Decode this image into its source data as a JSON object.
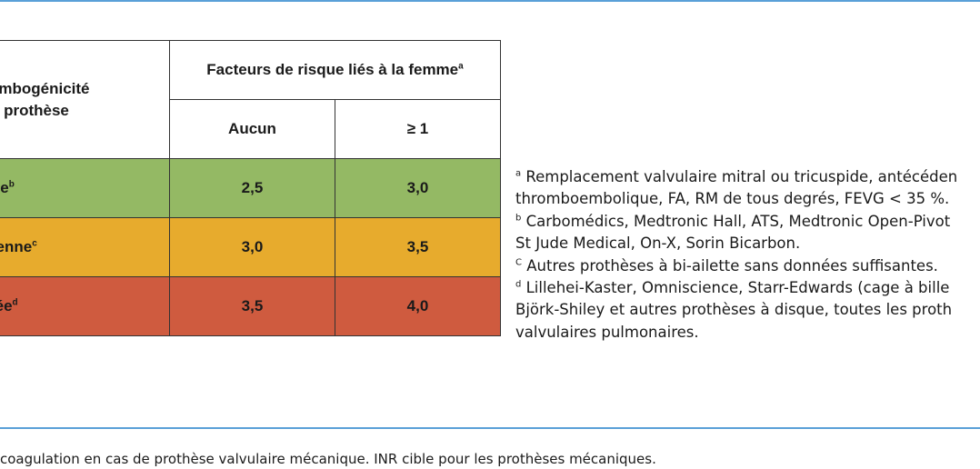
{
  "table": {
    "col_header_1_line1": "hrombogénicité",
    "col_header_1_line2": "e la prothèse",
    "group_header": "Facteurs de risque liés à la femme",
    "group_header_sup": "a",
    "sub_header_1": "Aucun",
    "sub_header_2": "≥ 1",
    "rows": [
      {
        "label": "aible",
        "sup": "b",
        "v1": "2,5",
        "v2": "3,0",
        "color": "#94b964"
      },
      {
        "label": "loyenne",
        "sup": "c",
        "v1": "3,0",
        "v2": "3,5",
        "color": "#e7ab2d"
      },
      {
        "label": "levée",
        "sup": "d",
        "v1": "3,5",
        "v2": "4,0",
        "color": "#cf5b3f"
      }
    ]
  },
  "notes": [
    {
      "sup": "a",
      "line1": " Remplacement valvulaire mitral ou tricuspide, antécéden",
      "line2": "thromboembolique, FA, RM de tous degrés, FEVG < 35 %."
    },
    {
      "sup": "b",
      "line1": " Carbomédics, Medtronic Hall, ATS, Medtronic Open-Pivot",
      "line2": "St Jude Medical, On-X, Sorin Bicarbon."
    },
    {
      "sup": "C",
      "line1": " Autres prothèses à bi-ailette sans données suffisantes.",
      "line2": ""
    },
    {
      "sup": "d",
      "line1": " Lillehei-Kaster, Omniscience, Starr-Edwards (cage à bille",
      "line2": "Björk-Shiley et autres prothèses à disque, toutes les proth",
      "line3": "valvulaires pulmonaires."
    }
  ],
  "caption": "coagulation en cas de prothèse valvulaire mécanique. INR cible pour les prothèses mécaniques.",
  "colors": {
    "rule": "#5aa0d8",
    "low": "#94b964",
    "medium": "#e7ab2d",
    "high": "#cf5b3f"
  }
}
